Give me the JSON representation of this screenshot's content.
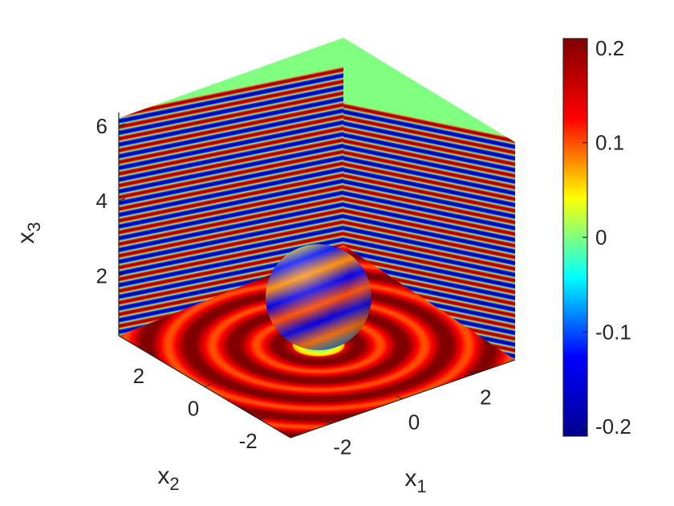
{
  "chart_data": {
    "type": "heatmap",
    "title": "",
    "description_of_marks": "3-D scattered wave field: three orthogonal slice planes (x1-x3 wall, x2-x3 wall, x1-x2 floor) plus a sphere scatterer, colored by field value",
    "axes": {
      "x1": {
        "label": "x",
        "subscript": "1",
        "ticks": [
          "-2",
          "0",
          "2"
        ],
        "range": [
          -3.14,
          3.14
        ]
      },
      "x2": {
        "label": "x",
        "subscript": "2",
        "ticks": [
          "2",
          "0",
          "-2"
        ],
        "range": [
          -3.14,
          3.14
        ]
      },
      "x3": {
        "label": "x",
        "subscript": "3",
        "ticks": [
          "2",
          "4",
          "6"
        ],
        "range": [
          0.4,
          6.3
        ]
      }
    },
    "colorbar": {
      "colormap": "jet",
      "range": [
        -0.21,
        0.21
      ],
      "ticks": [
        "0.2",
        "0.1",
        "0",
        "-0.1",
        "-0.2"
      ]
    },
    "wall_wave": {
      "stripes": 20,
      "amplitude_range": [
        -0.2,
        0.2
      ]
    },
    "floor_wave": {
      "rings": 6,
      "mean": 0.16,
      "amplitude": 0.06
    },
    "sphere": {
      "center": [
        0,
        0,
        1.5
      ],
      "radius": 1.0,
      "value_range": [
        -0.15,
        0.12
      ]
    }
  },
  "colors": {
    "jet_stops": [
      "#00008f",
      "#0000ff",
      "#00ffff",
      "#ffff00",
      "#ff0000",
      "#800000"
    ],
    "axis": "#262626",
    "background": "#ffffff"
  }
}
